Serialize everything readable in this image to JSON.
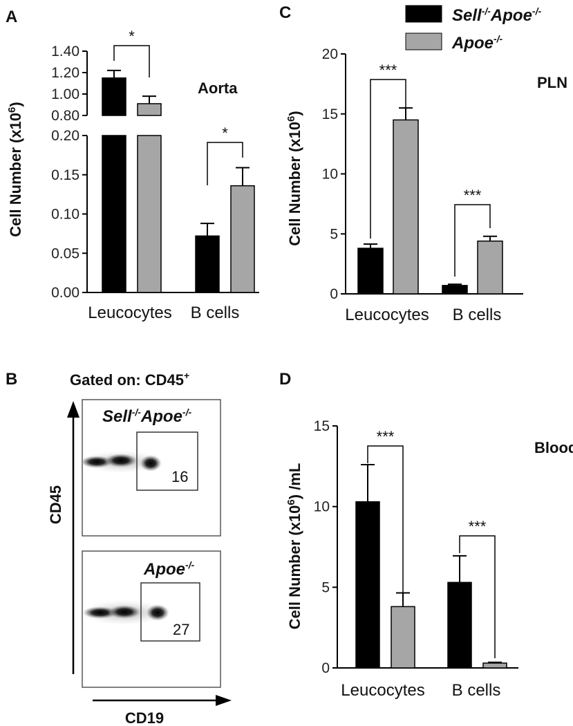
{
  "colors": {
    "sell_apoe": "#000000",
    "apoe": "#a6a6a6"
  },
  "legend": {
    "items": [
      {
        "name": "Sell-/-Apoe-/-",
        "color": "#000000"
      },
      {
        "name": "Apoe-/-",
        "color": "#a6a6a6"
      }
    ]
  },
  "chart_data": [
    {
      "panel": "A",
      "type": "bar",
      "title": "Aorta",
      "ylabel": "Cell Number (x10^6)",
      "categories": [
        "Leucocytes",
        "B cells"
      ],
      "series": [
        {
          "name": "Sell-/-Apoe-/-",
          "values": [
            1.15,
            0.072
          ],
          "errors": [
            0.07,
            0.016
          ]
        },
        {
          "name": "Apoe-/-",
          "values": [
            0.91,
            0.136
          ],
          "errors": [
            0.07,
            0.023
          ]
        }
      ],
      "broken_axis": {
        "lower": {
          "ylim": [
            0,
            0.2
          ],
          "ticks": [
            "0.00",
            "0.05",
            "0.10",
            "0.15",
            "0.20"
          ]
        },
        "upper": {
          "ylim": [
            0.8,
            1.4
          ],
          "ticks": [
            "0.80",
            "1.00",
            "1.20",
            "1.40"
          ]
        }
      },
      "significance": [
        "*",
        "*"
      ]
    },
    {
      "panel": "C",
      "type": "bar",
      "title": "PLN",
      "ylabel": "Cell Number (x10^6)",
      "categories": [
        "Leucocytes",
        "B cells"
      ],
      "series": [
        {
          "name": "Sell-/-Apoe-/-",
          "values": [
            3.8,
            0.7
          ],
          "errors": [
            0.35,
            0.1
          ]
        },
        {
          "name": "Apoe-/-",
          "values": [
            14.5,
            4.4
          ],
          "errors": [
            1.0,
            0.4
          ]
        }
      ],
      "ylim": [
        0,
        20
      ],
      "yticks": [
        "0",
        "5",
        "10",
        "15",
        "20"
      ],
      "significance": [
        "***",
        "***"
      ]
    },
    {
      "panel": "D",
      "type": "bar",
      "title": "Blood",
      "ylabel": "Cell Number (x10^6) /mL",
      "categories": [
        "Leucocytes",
        "B cells"
      ],
      "series": [
        {
          "name": "Sell-/-Apoe-/-",
          "values": [
            10.3,
            5.3
          ],
          "errors": [
            2.3,
            1.65
          ]
        },
        {
          "name": "Apoe-/-",
          "values": [
            3.8,
            0.3
          ],
          "errors": [
            0.85,
            0.05
          ]
        }
      ],
      "ylim": [
        0,
        15
      ],
      "yticks": [
        "0",
        "5",
        "10",
        "15"
      ],
      "significance": [
        "***",
        "***"
      ]
    }
  ],
  "flow": {
    "panel": "B",
    "header": "Gated on: CD45+",
    "yaxis": "CD45",
    "xaxis": "CD19",
    "plots": [
      {
        "label": "Sell-/-Apoe-/-",
        "gate_value": "16"
      },
      {
        "label": "Apoe-/-",
        "gate_value": "27"
      }
    ]
  }
}
